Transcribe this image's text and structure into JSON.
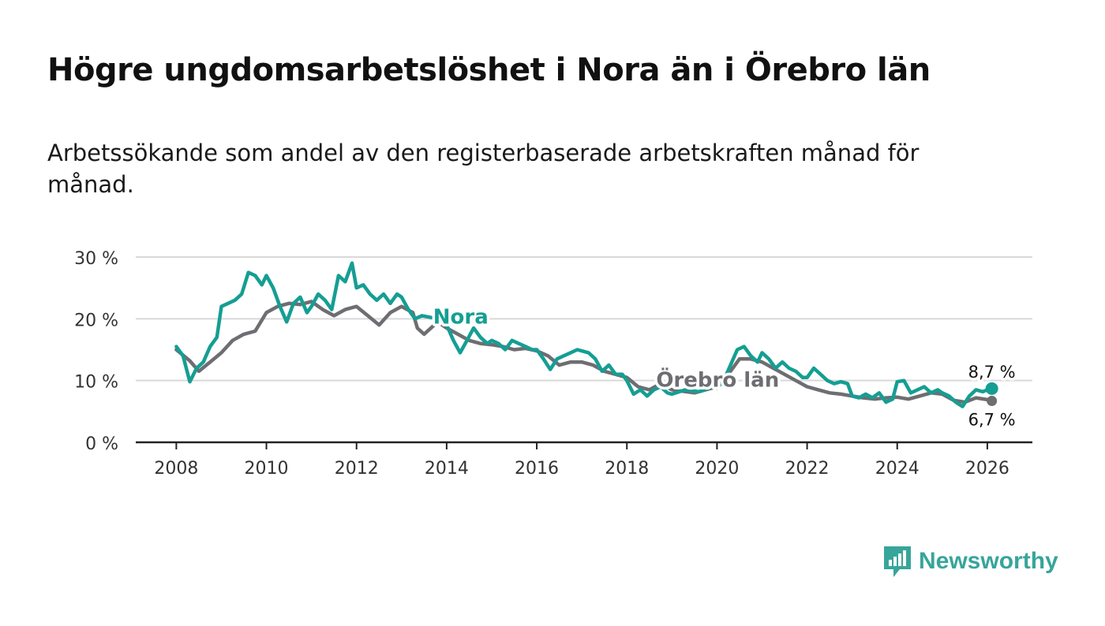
{
  "title": "Högre ungdomsarbetslöshet i Nora än i Örebro län",
  "subtitle": "Arbetssökande som andel av den registerbaserade arbetskraften månad för månad.",
  "brand": {
    "name": "Newsworthy",
    "color": "#37a59a"
  },
  "chart_data": {
    "type": "line",
    "title": "Högre ungdomsarbetslöshet i Nora än i Örebro län",
    "xlabel": "",
    "ylabel": "",
    "xlim": [
      2007.1,
      2027.0
    ],
    "ylim": [
      0,
      30
    ],
    "grid": true,
    "x_ticks": [
      2008,
      2010,
      2012,
      2014,
      2016,
      2018,
      2020,
      2022,
      2024,
      2026
    ],
    "x_tick_labels": [
      "2008",
      "2010",
      "2012",
      "2014",
      "2016",
      "2018",
      "2020",
      "2022",
      "2024",
      "2026"
    ],
    "y_ticks": [
      0,
      10,
      20,
      30
    ],
    "y_tick_labels": [
      "0 %",
      "10 %",
      "20 %",
      "30 %"
    ],
    "series": [
      {
        "name": "Örebro län",
        "label": "Örebro län",
        "color": "#6e6e72",
        "end_label": "6,7 %",
        "points": [
          [
            2008.0,
            15.0
          ],
          [
            2008.3,
            13.2
          ],
          [
            2008.5,
            11.5
          ],
          [
            2008.75,
            13.0
          ],
          [
            2009.0,
            14.5
          ],
          [
            2009.25,
            16.5
          ],
          [
            2009.5,
            17.5
          ],
          [
            2009.75,
            18.0
          ],
          [
            2010.0,
            21.0
          ],
          [
            2010.25,
            22.0
          ],
          [
            2010.5,
            22.5
          ],
          [
            2010.75,
            22.3
          ],
          [
            2011.0,
            22.8
          ],
          [
            2011.25,
            21.5
          ],
          [
            2011.5,
            20.5
          ],
          [
            2011.75,
            21.5
          ],
          [
            2012.0,
            22.0
          ],
          [
            2012.25,
            20.5
          ],
          [
            2012.5,
            19.0
          ],
          [
            2012.75,
            21.0
          ],
          [
            2013.0,
            22.0
          ],
          [
            2013.25,
            21.0
          ],
          [
            2013.35,
            18.5
          ],
          [
            2013.5,
            17.5
          ],
          [
            2013.8,
            19.5
          ],
          [
            2014.0,
            18.5
          ],
          [
            2014.25,
            17.5
          ],
          [
            2014.5,
            16.5
          ],
          [
            2014.75,
            16.0
          ],
          [
            2015.0,
            15.8
          ],
          [
            2015.25,
            15.5
          ],
          [
            2015.5,
            15.0
          ],
          [
            2015.75,
            15.2
          ],
          [
            2016.0,
            14.8
          ],
          [
            2016.25,
            14.0
          ],
          [
            2016.5,
            12.5
          ],
          [
            2016.75,
            13.0
          ],
          [
            2017.0,
            13.0
          ],
          [
            2017.25,
            12.5
          ],
          [
            2017.5,
            11.5
          ],
          [
            2017.75,
            11.0
          ],
          [
            2018.0,
            10.5
          ],
          [
            2018.25,
            9.0
          ],
          [
            2018.5,
            8.5
          ],
          [
            2018.75,
            9.5
          ],
          [
            2019.0,
            8.5
          ],
          [
            2019.5,
            8.0
          ],
          [
            2020.0,
            9.0
          ],
          [
            2020.25,
            11.0
          ],
          [
            2020.5,
            13.5
          ],
          [
            2020.75,
            13.5
          ],
          [
            2021.0,
            13.0
          ],
          [
            2021.25,
            12.0
          ],
          [
            2021.5,
            11.0
          ],
          [
            2021.75,
            10.0
          ],
          [
            2022.0,
            9.0
          ],
          [
            2022.25,
            8.5
          ],
          [
            2022.5,
            8.0
          ],
          [
            2022.75,
            7.8
          ],
          [
            2023.0,
            7.5
          ],
          [
            2023.25,
            7.2
          ],
          [
            2023.5,
            7.0
          ],
          [
            2023.75,
            7.2
          ],
          [
            2024.0,
            7.3
          ],
          [
            2024.25,
            7.0
          ],
          [
            2024.5,
            7.5
          ],
          [
            2024.75,
            8.0
          ],
          [
            2025.0,
            7.8
          ],
          [
            2025.25,
            6.8
          ],
          [
            2025.5,
            6.5
          ],
          [
            2025.75,
            7.2
          ],
          [
            2026.0,
            6.9
          ],
          [
            2026.1,
            6.7
          ]
        ]
      },
      {
        "name": "Nora",
        "label": "Nora",
        "color": "#159e93",
        "end_label": "8,7 %",
        "points": [
          [
            2008.0,
            15.5
          ],
          [
            2008.15,
            14.0
          ],
          [
            2008.3,
            9.8
          ],
          [
            2008.45,
            12.0
          ],
          [
            2008.6,
            13.0
          ],
          [
            2008.75,
            15.5
          ],
          [
            2008.9,
            17.0
          ],
          [
            2009.0,
            22.0
          ],
          [
            2009.15,
            22.5
          ],
          [
            2009.3,
            23.0
          ],
          [
            2009.45,
            24.0
          ],
          [
            2009.6,
            27.5
          ],
          [
            2009.75,
            27.0
          ],
          [
            2009.9,
            25.5
          ],
          [
            2010.0,
            27.0
          ],
          [
            2010.15,
            25.0
          ],
          [
            2010.3,
            22.0
          ],
          [
            2010.45,
            19.5
          ],
          [
            2010.6,
            22.5
          ],
          [
            2010.75,
            23.5
          ],
          [
            2010.9,
            21.0
          ],
          [
            2011.0,
            22.0
          ],
          [
            2011.15,
            24.0
          ],
          [
            2011.3,
            23.0
          ],
          [
            2011.45,
            21.5
          ],
          [
            2011.6,
            27.0
          ],
          [
            2011.75,
            26.0
          ],
          [
            2011.9,
            29.0
          ],
          [
            2012.0,
            25.0
          ],
          [
            2012.15,
            25.5
          ],
          [
            2012.3,
            24.0
          ],
          [
            2012.45,
            23.0
          ],
          [
            2012.6,
            24.0
          ],
          [
            2012.75,
            22.5
          ],
          [
            2012.9,
            24.0
          ],
          [
            2013.0,
            23.5
          ],
          [
            2013.15,
            21.5
          ],
          [
            2013.3,
            20.0
          ],
          [
            2013.45,
            20.5
          ],
          [
            2013.8,
            20.0
          ],
          [
            2014.0,
            19.0
          ],
          [
            2014.15,
            16.5
          ],
          [
            2014.3,
            14.5
          ],
          [
            2014.45,
            16.5
          ],
          [
            2014.6,
            18.5
          ],
          [
            2014.75,
            17.0
          ],
          [
            2014.9,
            16.0
          ],
          [
            2015.0,
            16.5
          ],
          [
            2015.15,
            16.0
          ],
          [
            2015.3,
            15.0
          ],
          [
            2015.45,
            16.5
          ],
          [
            2015.6,
            16.0
          ],
          [
            2015.75,
            15.5
          ],
          [
            2015.9,
            15.0
          ],
          [
            2016.0,
            15.0
          ],
          [
            2016.15,
            13.5
          ],
          [
            2016.3,
            11.8
          ],
          [
            2016.45,
            13.5
          ],
          [
            2016.6,
            14.0
          ],
          [
            2016.75,
            14.5
          ],
          [
            2016.9,
            15.0
          ],
          [
            2017.0,
            14.8
          ],
          [
            2017.15,
            14.5
          ],
          [
            2017.3,
            13.5
          ],
          [
            2017.45,
            11.5
          ],
          [
            2017.6,
            12.5
          ],
          [
            2017.75,
            11.0
          ],
          [
            2017.9,
            11.0
          ],
          [
            2018.0,
            10.0
          ],
          [
            2018.15,
            7.8
          ],
          [
            2018.3,
            8.5
          ],
          [
            2018.45,
            7.5
          ],
          [
            2018.6,
            8.5
          ],
          [
            2018.75,
            9.0
          ],
          [
            2018.9,
            8.0
          ],
          [
            2019.0,
            7.8
          ],
          [
            2019.3,
            8.5
          ],
          [
            2019.6,
            8.2
          ],
          [
            2019.9,
            9.0
          ],
          [
            2020.0,
            8.8
          ],
          [
            2020.15,
            10.0
          ],
          [
            2020.3,
            12.5
          ],
          [
            2020.45,
            15.0
          ],
          [
            2020.6,
            15.5
          ],
          [
            2020.75,
            14.0
          ],
          [
            2020.9,
            13.0
          ],
          [
            2021.0,
            14.5
          ],
          [
            2021.15,
            13.5
          ],
          [
            2021.3,
            12.0
          ],
          [
            2021.45,
            13.0
          ],
          [
            2021.6,
            12.0
          ],
          [
            2021.75,
            11.5
          ],
          [
            2021.9,
            10.5
          ],
          [
            2022.0,
            10.5
          ],
          [
            2022.15,
            12.0
          ],
          [
            2022.3,
            11.0
          ],
          [
            2022.45,
            10.0
          ],
          [
            2022.6,
            9.5
          ],
          [
            2022.75,
            9.8
          ],
          [
            2022.9,
            9.5
          ],
          [
            2023.0,
            7.5
          ],
          [
            2023.15,
            7.2
          ],
          [
            2023.3,
            7.8
          ],
          [
            2023.45,
            7.2
          ],
          [
            2023.6,
            8.0
          ],
          [
            2023.75,
            6.5
          ],
          [
            2023.9,
            7.0
          ],
          [
            2024.0,
            9.8
          ],
          [
            2024.15,
            10.0
          ],
          [
            2024.3,
            8.0
          ],
          [
            2024.45,
            8.5
          ],
          [
            2024.6,
            9.0
          ],
          [
            2024.75,
            8.0
          ],
          [
            2024.9,
            8.5
          ],
          [
            2025.0,
            8.0
          ],
          [
            2025.15,
            7.5
          ],
          [
            2025.3,
            6.5
          ],
          [
            2025.45,
            5.8
          ],
          [
            2025.6,
            7.5
          ],
          [
            2025.75,
            8.5
          ],
          [
            2025.9,
            8.2
          ],
          [
            2026.0,
            8.5
          ],
          [
            2026.1,
            8.7
          ]
        ]
      }
    ]
  }
}
